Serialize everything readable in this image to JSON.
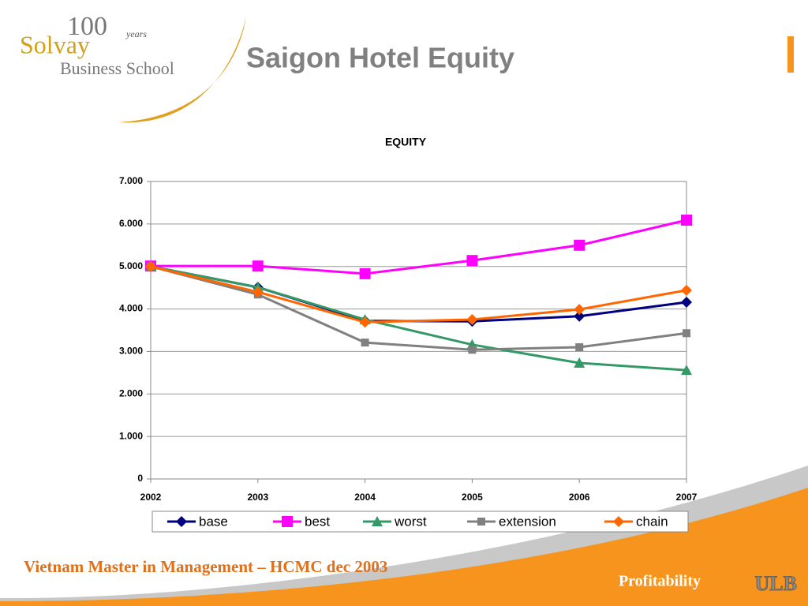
{
  "slide": {
    "title": "Saigon Hotel Equity",
    "logo": {
      "years_number": "100",
      "years_word": "years",
      "name": "Solvay",
      "school": "Business School"
    },
    "footer": {
      "left": "Vietnam Master in Management – HCMC dec 2003",
      "right": "Profitability",
      "badge": "ULB"
    }
  },
  "chart_data": {
    "type": "line",
    "title": "EQUITY",
    "x": [
      2002,
      2003,
      2004,
      2005,
      2006,
      2007
    ],
    "xlim": [
      2002,
      2007
    ],
    "xticks": [
      2002,
      2003,
      2004,
      2005,
      2006,
      2007
    ],
    "ylim": [
      0,
      7000
    ],
    "yticks": [
      0,
      {
        "value": 1000,
        "label": "1.000"
      },
      {
        "value": 2000,
        "label": "2.000"
      },
      {
        "value": 3000,
        "label": "3.000"
      },
      {
        "value": 4000,
        "label": "4.000"
      },
      {
        "value": 5000,
        "label": "5.000"
      },
      {
        "value": 6000,
        "label": "6.000"
      },
      {
        "value": 7000,
        "label": "7.000"
      }
    ],
    "grid": true,
    "legend": "bottom",
    "series": [
      {
        "name": "base",
        "color": "#000080",
        "marker": "diamond",
        "values": [
          5000,
          4510,
          3720,
          3710,
          3830,
          4160
        ]
      },
      {
        "name": "best",
        "color": "#ff00ff",
        "marker": "square",
        "values": [
          5010,
          5010,
          4830,
          5140,
          5500,
          6090
        ]
      },
      {
        "name": "worst",
        "color": "#339966",
        "marker": "triangle",
        "values": [
          5000,
          4510,
          3750,
          3160,
          2730,
          2560
        ]
      },
      {
        "name": "extension",
        "color": "#808080",
        "marker": "square-small",
        "values": [
          5000,
          4340,
          3210,
          3040,
          3100,
          3430
        ]
      },
      {
        "name": "chain",
        "color": "#ff6600",
        "marker": "diamond",
        "values": [
          5000,
          4400,
          3690,
          3750,
          3990,
          4440
        ]
      }
    ]
  }
}
